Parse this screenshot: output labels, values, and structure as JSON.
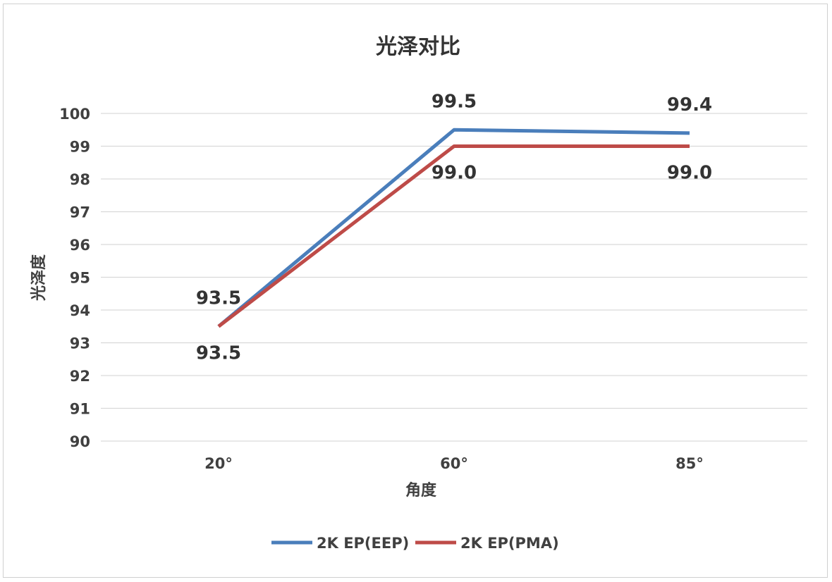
{
  "chart_data": {
    "type": "line",
    "title": "光泽对比",
    "xlabel": "角度",
    "ylabel": "光泽度",
    "categories": [
      "20°",
      "60°",
      "85°"
    ],
    "ylim": [
      90,
      100
    ],
    "yticks": [
      "90",
      "91",
      "92",
      "93",
      "94",
      "95",
      "96",
      "97",
      "98",
      "99",
      "100"
    ],
    "grid": true,
    "legend_position": "bottom",
    "series": [
      {
        "name": "2K EP(EEP)",
        "values": [
          93.5,
          99.5,
          99.4
        ],
        "labels": [
          "93.5",
          "99.5",
          "99.4"
        ],
        "color": "#4a7ebb",
        "label_position": "above"
      },
      {
        "name": "2K EP(PMA)",
        "values": [
          93.5,
          99.0,
          99.0
        ],
        "labels": [
          "93.5",
          "99.0",
          "99.0"
        ],
        "color": "#be4b48",
        "label_position": "below"
      }
    ]
  }
}
